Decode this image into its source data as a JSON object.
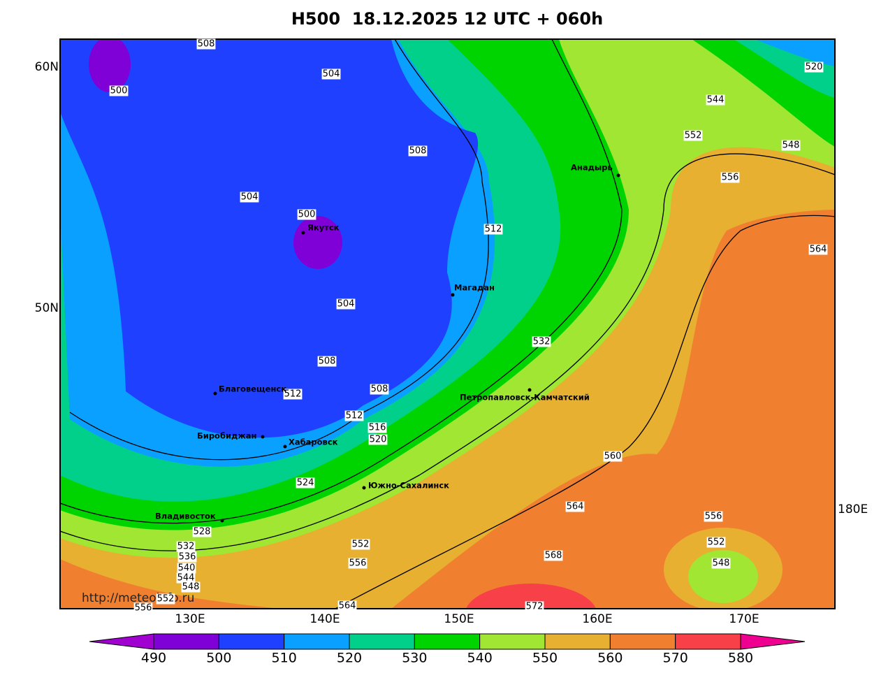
{
  "title": "H500  18.12.2025 12 UTC + 060h",
  "latitude_labels": [
    "60N",
    "50N"
  ],
  "longitude_labels": [
    "130E",
    "140E",
    "150E",
    "160E",
    "170E",
    "180E"
  ],
  "contour_labels": [
    508,
    504,
    500,
    508,
    504,
    500,
    512,
    504,
    508,
    532,
    508,
    512,
    512,
    516,
    520,
    524,
    560,
    564,
    556,
    552,
    548,
    568,
    552,
    556,
    528,
    532,
    536,
    540,
    544,
    548,
    552,
    556,
    564,
    572,
    520,
    544,
    552,
    548,
    556,
    564
  ],
  "cities": [
    "Якутск",
    "Магадан",
    "Анадырь",
    "Благовещенск",
    "Биробиджан",
    "Хабаровск",
    "Петропавловск-Камчатский",
    "Южно-Сахалинск",
    "Владивосток"
  ],
  "source_url": "http://meteoinfo.ru",
  "colorbar": {
    "ticks": [
      490,
      500,
      510,
      520,
      530,
      540,
      550,
      560,
      570,
      580
    ],
    "colors": [
      "#8000d8",
      "#2040ff",
      "#0aa0ff",
      "#00d08a",
      "#00d400",
      "#a0e632",
      "#e8b030",
      "#f08030",
      "#f84048"
    ],
    "under_color": "#a000d0",
    "over_color": "#f00090"
  }
}
